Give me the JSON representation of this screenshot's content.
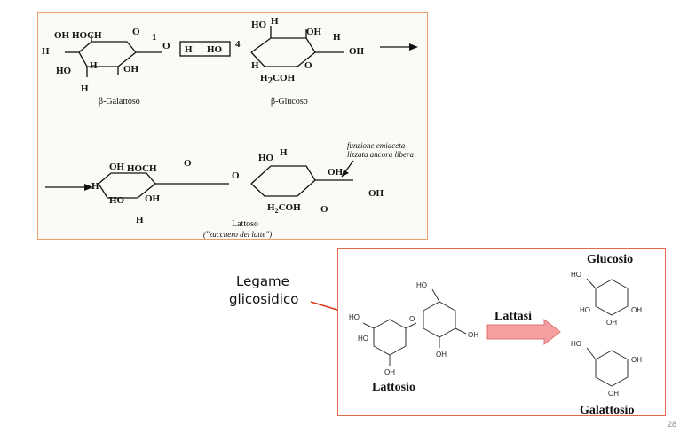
{
  "top": {
    "atoms": {
      "oh": "OH",
      "hoch2": "HOCH",
      "sub2": "2",
      "h": "H",
      "o": "O",
      "ho": "HO",
      "h2coh": "H",
      "h2coh_rest": "COH",
      "n1": "1",
      "n4": "4"
    },
    "galactose_label": "β-Galattoso",
    "glucose_label": "β-Glucoso",
    "lactose_label": "Lattoso",
    "lactose_sub": "(\"zucchero del latte\")",
    "note_line1": "funzione emiaceta-",
    "note_line2": "lizzata ancora libera",
    "boxed_left": "H",
    "boxed_right": "HO"
  },
  "bottom": {
    "glucosio": "Glucosio",
    "galattosio": "Galattosio",
    "lattosio": "Lattosio",
    "lattasi": "Lattasi",
    "bond_label_line1": "Legame",
    "bond_label_line2": "glicosidico",
    "atoms": {
      "ho": "HO",
      "oh": "OH",
      "o": "O"
    }
  },
  "colors": {
    "arrow_fill": "#f4a0a0",
    "pointer": "#e03a1a",
    "top_border": "#e8a070",
    "bottom_border": "#e06a4c"
  },
  "page_number": "28"
}
